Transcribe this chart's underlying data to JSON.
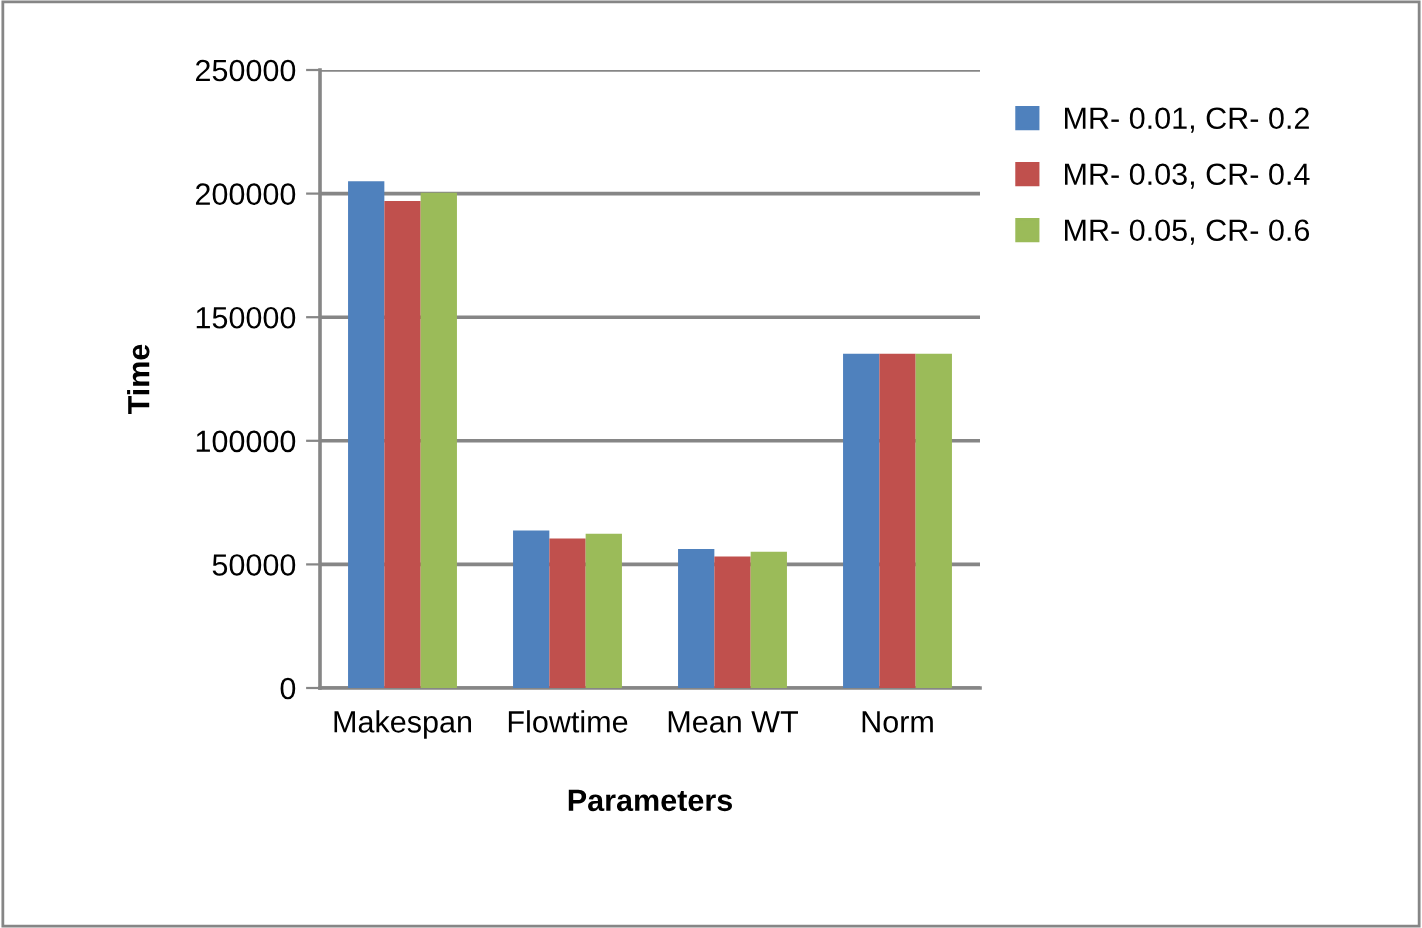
{
  "chart_data": {
    "type": "bar",
    "xlabel": "Parameters",
    "ylabel": "Time",
    "categories": [
      "Makespan",
      "Flowtime",
      "Mean WT",
      "Norm"
    ],
    "series": [
      {
        "name": "MR- 0.01, CR- 0.2",
        "color": "#4f81bd",
        "values": [
          205000,
          63700,
          56200,
          135200
        ]
      },
      {
        "name": "MR- 0.03, CR- 0.4",
        "color": "#c0504d",
        "values": [
          197000,
          60500,
          53200,
          135200
        ]
      },
      {
        "name": "MR- 0.05, CR- 0.6",
        "color": "#9bbb59",
        "values": [
          200300,
          62400,
          55100,
          135200
        ]
      }
    ],
    "ylim": [
      0,
      250000
    ],
    "yticks": [
      0,
      50000,
      100000,
      150000,
      200000,
      250000
    ],
    "grid": "y",
    "legend": "right"
  }
}
